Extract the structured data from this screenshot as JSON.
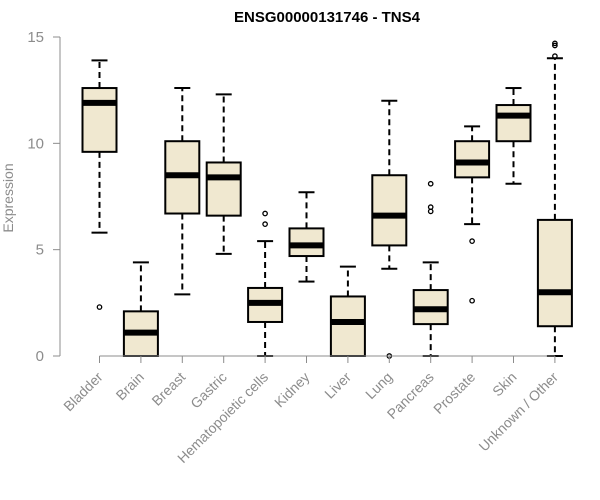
{
  "chart_data": {
    "type": "box",
    "title": "ENSG00000131746 - TNS4",
    "ylabel": "Expression",
    "xlabel": "",
    "ylim": [
      0,
      15
    ],
    "yticks": [
      0,
      5,
      10,
      15
    ],
    "grid": false,
    "box_fill": "#f0e8d0",
    "median_color": "#000000",
    "categories": [
      "Bladder",
      "Brain",
      "Breast",
      "Gastric",
      "Hematopoietic cells",
      "Kidney",
      "Liver",
      "Lung",
      "Pancreas",
      "Prostate",
      "Skin",
      "Unknown / Other"
    ],
    "boxes": [
      {
        "whisker_low": 5.8,
        "q1": 9.6,
        "median": 11.9,
        "q3": 12.6,
        "whisker_high": 13.9,
        "outliers": [
          2.3
        ]
      },
      {
        "whisker_low": 0.0,
        "q1": 0.0,
        "median": 1.1,
        "q3": 2.1,
        "whisker_high": 4.4,
        "outliers": []
      },
      {
        "whisker_low": 2.9,
        "q1": 6.7,
        "median": 8.5,
        "q3": 10.1,
        "whisker_high": 12.6,
        "outliers": []
      },
      {
        "whisker_low": 4.8,
        "q1": 6.6,
        "median": 8.4,
        "q3": 9.1,
        "whisker_high": 12.3,
        "outliers": []
      },
      {
        "whisker_low": 0.0,
        "q1": 1.6,
        "median": 2.5,
        "q3": 3.2,
        "whisker_high": 5.4,
        "outliers": [
          6.2,
          6.7
        ]
      },
      {
        "whisker_low": 3.5,
        "q1": 4.7,
        "median": 5.2,
        "q3": 6.0,
        "whisker_high": 7.7,
        "outliers": []
      },
      {
        "whisker_low": 0.0,
        "q1": 0.0,
        "median": 1.6,
        "q3": 2.8,
        "whisker_high": 4.2,
        "outliers": []
      },
      {
        "whisker_low": 4.1,
        "q1": 5.2,
        "median": 6.6,
        "q3": 8.5,
        "whisker_high": 12.0,
        "outliers": [
          0.0
        ]
      },
      {
        "whisker_low": 0.0,
        "q1": 1.5,
        "median": 2.2,
        "q3": 3.1,
        "whisker_high": 4.4,
        "outliers": [
          6.8,
          7.0,
          8.1
        ]
      },
      {
        "whisker_low": 6.2,
        "q1": 8.4,
        "median": 9.1,
        "q3": 10.1,
        "whisker_high": 10.8,
        "outliers": [
          2.6,
          5.4
        ]
      },
      {
        "whisker_low": 8.1,
        "q1": 10.1,
        "median": 11.3,
        "q3": 11.8,
        "whisker_high": 12.6,
        "outliers": []
      },
      {
        "whisker_low": 0.0,
        "q1": 1.4,
        "median": 3.0,
        "q3": 6.4,
        "whisker_high": 14.0,
        "outliers": [
          14.1,
          14.6,
          14.7
        ]
      }
    ]
  }
}
